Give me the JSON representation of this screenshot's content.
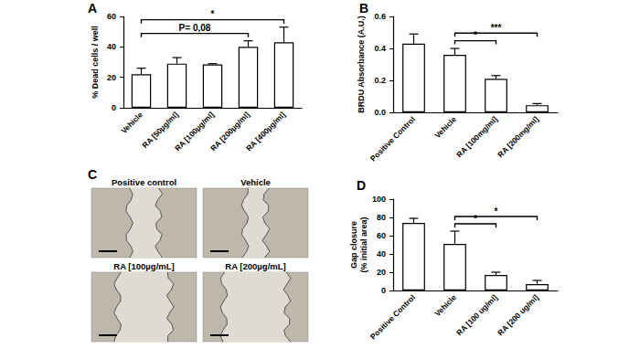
{
  "chart_data": [
    {
      "panel": "A",
      "type": "bar",
      "y_label": "% Dead cells / well",
      "categories": [
        "Vehicle",
        "RA [50µg/ml]",
        "RA [100µg/ml]",
        "RA [200µg/ml]",
        "RA [400µg/ml]"
      ],
      "values": [
        22,
        29,
        28.5,
        40,
        43
      ],
      "errors": [
        4,
        4,
        0.5,
        4,
        10
      ],
      "color": "#ffffff",
      "ylim": [
        0,
        60
      ],
      "yticks": [
        0,
        20,
        40,
        60
      ],
      "grid": false,
      "comparisons": [
        {
          "from": "Vehicle",
          "to": "RA [200µg/ml]",
          "text": "P= 0,08"
        },
        {
          "from": "Vehicle",
          "to": "RA [400µg/ml]",
          "text": "*"
        }
      ]
    },
    {
      "panel": "B",
      "type": "bar",
      "y_label": "BRDU Absorbance (A.U.)",
      "categories": [
        "Positive Control",
        "Vehicle",
        "RA [100mg/ml]",
        "RA [200mg/ml]"
      ],
      "values": [
        0.43,
        0.36,
        0.21,
        0.045
      ],
      "errors": [
        0.06,
        0.04,
        0.02,
        0.01
      ],
      "color": "#ffffff",
      "ylim": [
        0,
        0.6
      ],
      "yticks": [
        {
          "value": 0,
          "label": "0.0"
        },
        0.2,
        0.4,
        0.6
      ],
      "grid": false,
      "comparisons": [
        {
          "from": "Vehicle",
          "to": "RA [100mg/ml]",
          "text": "*"
        },
        {
          "from": "Vehicle",
          "to": "RA [200mg/ml]",
          "text": "***"
        }
      ]
    },
    {
      "panel": "D",
      "type": "bar",
      "y_label": "Gap closure\n(% initial area)",
      "categories": [
        "Positive Control",
        "Vehicle",
        "RA [100 ug/ml]",
        "RA [200 ug/ml]"
      ],
      "values": [
        74,
        51,
        17,
        7
      ],
      "errors": [
        5,
        14,
        3,
        4
      ],
      "color": "#ffffff",
      "ylim": [
        0,
        100
      ],
      "yticks": [
        0,
        20,
        40,
        60,
        80,
        100
      ],
      "grid": false,
      "comparisons": [
        {
          "from": "Vehicle",
          "to": "RA [100 ug/ml]",
          "text": "*"
        },
        {
          "from": "Vehicle",
          "to": "RA [200 ug/ml]",
          "text": "*"
        }
      ]
    }
  ],
  "panel_c": {
    "panel": "C",
    "images": [
      "Positive control",
      "Vehicle",
      "RA [100µg/mL]",
      "RA [200µg/mL]"
    ]
  }
}
